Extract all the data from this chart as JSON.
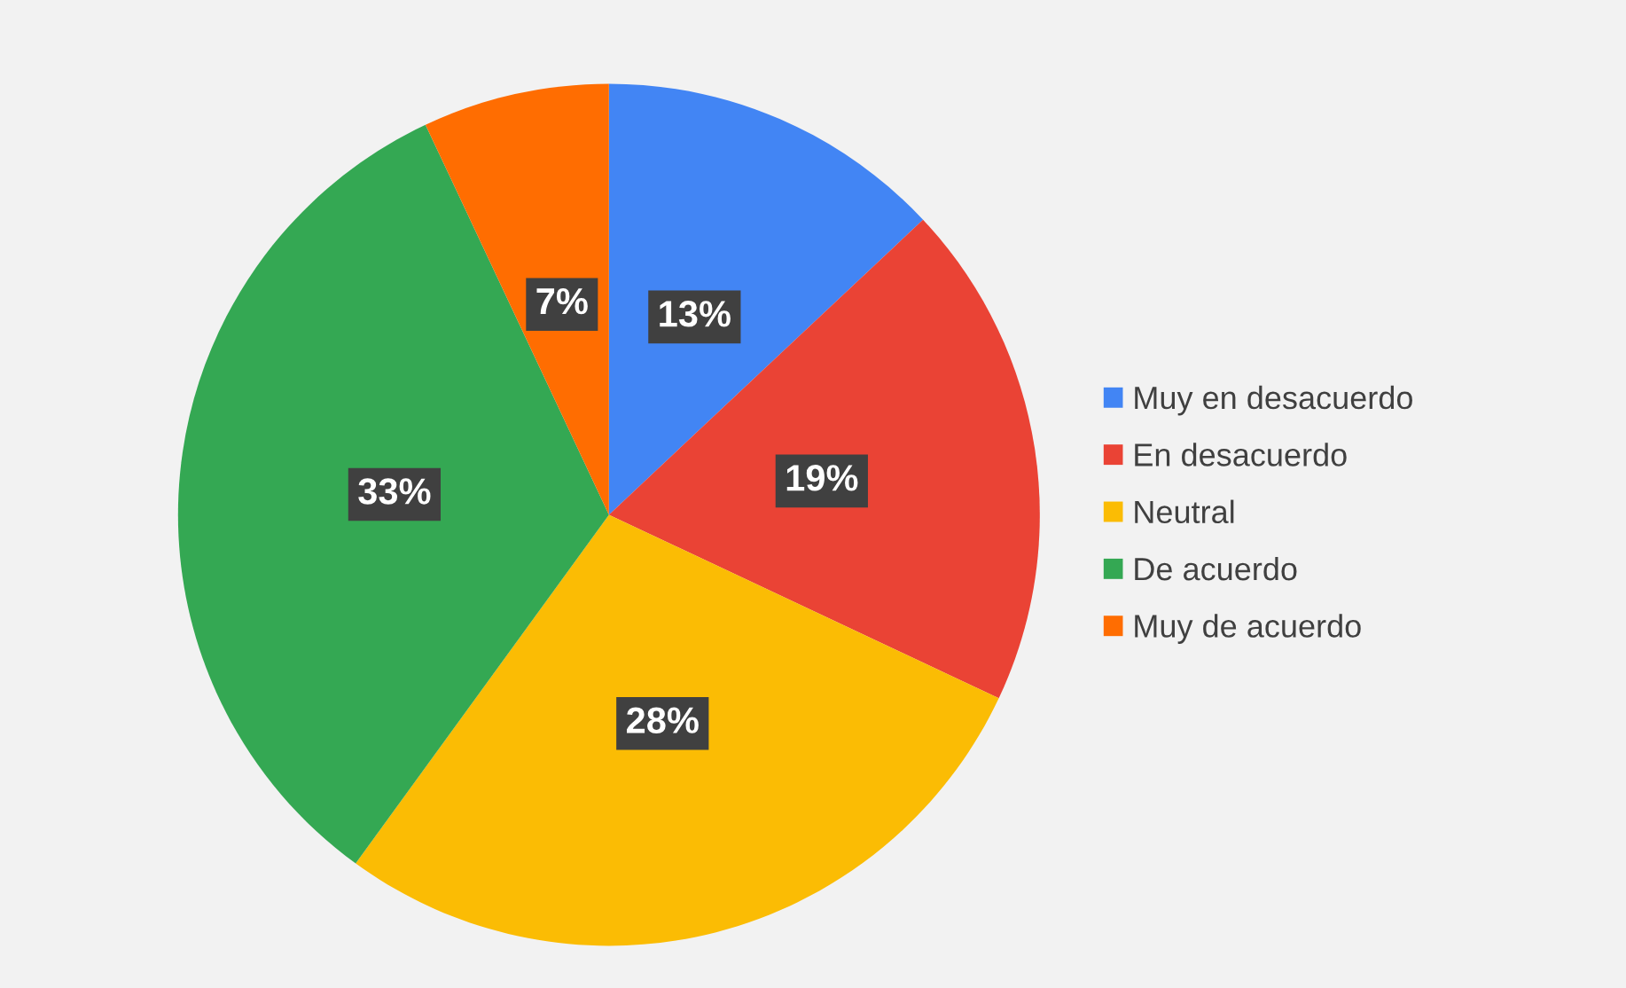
{
  "chart_data": {
    "type": "pie",
    "categories": [
      "Muy en desacuerdo",
      "En desacuerdo",
      "Neutral",
      "De acuerdo",
      "Muy de acuerdo"
    ],
    "values": [
      13,
      19,
      28,
      33,
      7
    ],
    "colors": [
      "#4285f4",
      "#ea4335",
      "#fbbc04",
      "#34a853",
      "#ff6d01"
    ],
    "value_labels": [
      "13%",
      "19%",
      "28%",
      "33%",
      "7%"
    ],
    "legend": "right"
  }
}
